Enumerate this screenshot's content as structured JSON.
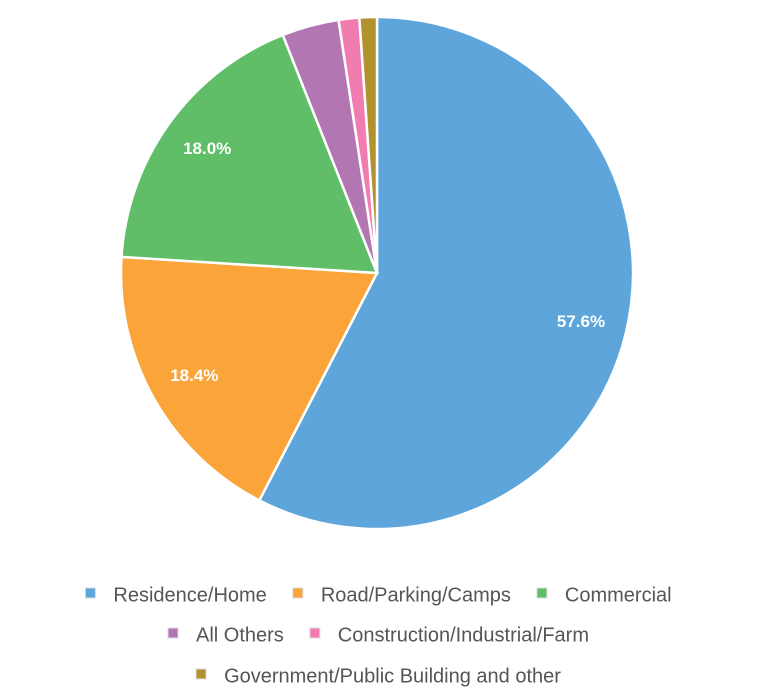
{
  "chart_data": {
    "type": "pie",
    "categories": [
      "Residence/Home",
      "Road/Parking/Camps",
      "Commercial",
      "All Others",
      "Construction/Industrial/Farm",
      "Government/Public Building and other"
    ],
    "values": [
      57.6,
      18.4,
      18.0,
      3.6,
      1.3,
      1.1
    ],
    "value_labels": [
      "57.6%",
      "18.4%",
      "18.0%",
      null,
      null,
      null
    ],
    "colors": [
      "#5da5da",
      "#faa43a",
      "#60bd68",
      "#b276b2",
      "#f17cb0",
      "#b2912f"
    ],
    "legend": "bottom"
  }
}
